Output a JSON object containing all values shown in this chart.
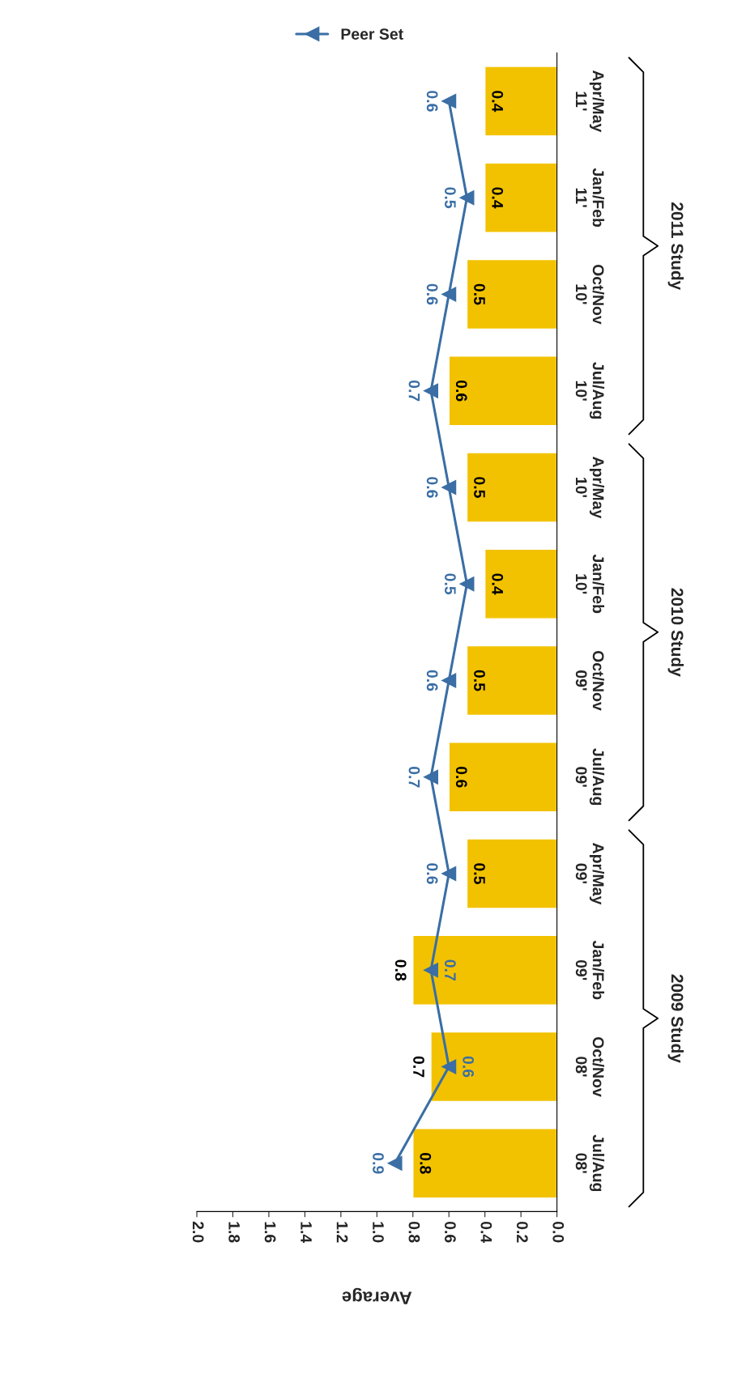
{
  "chart_data": {
    "type": "bar",
    "orientation": "horizontal",
    "categories": [
      "Apr/May 11'",
      "Jan/Feb 11'",
      "Oct/Nov 10'",
      "Jul/Aug 10'",
      "Apr/May 10'",
      "Jan/Feb 10'",
      "Oct/Nov 09'",
      "Jul/Aug 09'",
      "Apr/May 09'",
      "Jan/Feb 09'",
      "Oct/Nov 08'",
      "Jul/Aug 08'"
    ],
    "series": [
      {
        "color": "#f2c200",
        "values": [
          0.4,
          0.4,
          0.5,
          0.6,
          0.5,
          0.4,
          0.5,
          0.6,
          0.5,
          0.8,
          0.7,
          0.8
        ]
      },
      {
        "name": "Peer Set",
        "type": "line",
        "color": "#3a6ea5",
        "marker": "triangle",
        "values": [
          0.6,
          0.5,
          0.6,
          0.7,
          0.6,
          0.5,
          0.6,
          0.7,
          0.6,
          0.7,
          0.6,
          0.9
        ]
      }
    ],
    "xlabel": "Average",
    "xlim": [
      2.0,
      0.0
    ],
    "xticks": [
      {
        "value": 2.0,
        "label": "2.0"
      },
      {
        "value": 1.8,
        "label": "1.8"
      },
      {
        "value": 1.6,
        "label": "1.6"
      },
      {
        "value": 1.4,
        "label": "1.4"
      },
      {
        "value": 1.2,
        "label": "1.2"
      },
      {
        "value": 1.0,
        "label": "1.0"
      },
      {
        "value": 0.8,
        "label": "0.8"
      },
      {
        "value": 0.6,
        "label": "0.6"
      },
      {
        "value": 0.4,
        "label": "0.4"
      },
      {
        "value": 0.2,
        "label": "0.2"
      },
      {
        "value": 0.0,
        "label": "0.0"
      }
    ],
    "annotations": [
      "2011 Study",
      "2010 Study",
      "2009 Study"
    ],
    "data_labels": true,
    "legend": "top",
    "grid": false
  }
}
